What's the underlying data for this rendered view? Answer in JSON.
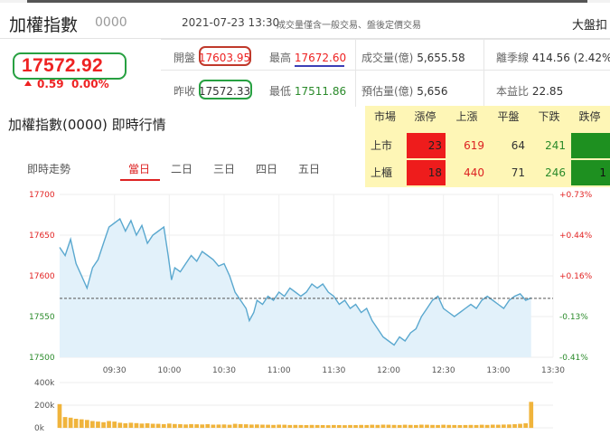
{
  "header": {
    "index_name": "加權指數",
    "index_code": "0000",
    "datetime": "2021-07-23 13:30",
    "disclaimer": "成交量僅含一般交易、盤後定價交易",
    "market_link": "大盤扣"
  },
  "quote": {
    "price": "17572.92",
    "change": "0.59",
    "change_pct": "0.00%",
    "direction": "up"
  },
  "stats": {
    "open_label": "開盤",
    "open": "17603.95",
    "high_label": "最高",
    "high": "17672.60",
    "volume_label": "成交量(億)",
    "volume": "5,655.58",
    "ma_label": "離季線",
    "ma": "414.56 (2.42%",
    "prev_label": "昨收",
    "prev": "17572.33",
    "low_label": "最低",
    "low": "17511.86",
    "est_label": "預估量(億)",
    "est": "5,656",
    "pe_label": "本益比",
    "pe": "22.85"
  },
  "section_title": "加權指數(0000) 即時行情",
  "breadth": {
    "headers": [
      "市場",
      "漲停",
      "上漲",
      "平盤",
      "下跌",
      "跌停"
    ],
    "rows": [
      {
        "market": "上市",
        "limit_up": "23",
        "up": "619",
        "flat": "64",
        "down": "241",
        "limit_down": ""
      },
      {
        "market": "上櫃",
        "limit_up": "18",
        "up": "440",
        "flat": "71",
        "down": "246",
        "limit_down": "1"
      }
    ]
  },
  "chart_tabs": {
    "label": "即時走勢",
    "tabs": [
      "當日",
      "二日",
      "三日",
      "四日",
      "五日"
    ],
    "active": 0
  },
  "colors": {
    "up": "#e22222",
    "down": "#2a8a2a",
    "line": "#5aa8cf",
    "fill": "#e2f1fa",
    "vol_bar": "#f0b43c",
    "highlight_green": "#27a041",
    "highlight_red": "#c0392b",
    "highlight_blue": "#3b3fb6"
  },
  "chart_data": {
    "type": "line",
    "x_ticks": [
      "09:30",
      "10:00",
      "10:30",
      "11:00",
      "11:30",
      "12:00",
      "12:30",
      "13:00",
      "13:30"
    ],
    "y_ticks": [
      "17700",
      "17650",
      "17600",
      "17550",
      "17500"
    ],
    "y_right_ticks": [
      "+0.73%",
      "+0.44%",
      "+0.16%",
      "-0.13%",
      "-0.41%"
    ],
    "ylim": [
      17500,
      17700
    ],
    "reference": 17572.33,
    "series": [
      {
        "values": [
          [
            9.0,
            17635
          ],
          [
            9.05,
            17625
          ],
          [
            9.1,
            17645
          ],
          [
            9.15,
            17615
          ],
          [
            9.2,
            17600
          ],
          [
            9.25,
            17585
          ],
          [
            9.3,
            17610
          ],
          [
            9.35,
            17620
          ],
          [
            9.4,
            17640
          ],
          [
            9.45,
            17660
          ],
          [
            9.5,
            17665
          ],
          [
            9.55,
            17670
          ],
          [
            9.6,
            17655
          ],
          [
            9.65,
            17668
          ],
          [
            9.7,
            17650
          ],
          [
            9.75,
            17662
          ],
          [
            9.8,
            17640
          ],
          [
            9.85,
            17650
          ],
          [
            9.9,
            17655
          ],
          [
            9.95,
            17660
          ],
          [
            9.99,
            17625
          ],
          [
            10.02,
            17595
          ],
          [
            10.05,
            17610
          ],
          [
            10.1,
            17605
          ],
          [
            10.15,
            17615
          ],
          [
            10.2,
            17625
          ],
          [
            10.25,
            17618
          ],
          [
            10.3,
            17630
          ],
          [
            10.35,
            17625
          ],
          [
            10.4,
            17620
          ],
          [
            10.45,
            17612
          ],
          [
            10.5,
            17615
          ],
          [
            10.55,
            17600
          ],
          [
            10.6,
            17580
          ],
          [
            10.65,
            17570
          ],
          [
            10.7,
            17560
          ],
          [
            10.73,
            17545
          ],
          [
            10.77,
            17555
          ],
          [
            10.8,
            17570
          ],
          [
            10.85,
            17565
          ],
          [
            10.9,
            17575
          ],
          [
            10.95,
            17570
          ],
          [
            11.0,
            17580
          ],
          [
            11.05,
            17575
          ],
          [
            11.1,
            17585
          ],
          [
            11.15,
            17580
          ],
          [
            11.2,
            17575
          ],
          [
            11.25,
            17580
          ],
          [
            11.3,
            17590
          ],
          [
            11.35,
            17585
          ],
          [
            11.4,
            17590
          ],
          [
            11.45,
            17580
          ],
          [
            11.5,
            17575
          ],
          [
            11.55,
            17565
          ],
          [
            11.6,
            17570
          ],
          [
            11.65,
            17560
          ],
          [
            11.7,
            17565
          ],
          [
            11.75,
            17555
          ],
          [
            11.8,
            17560
          ],
          [
            11.85,
            17545
          ],
          [
            11.9,
            17535
          ],
          [
            11.95,
            17525
          ],
          [
            12.0,
            17520
          ],
          [
            12.05,
            17515
          ],
          [
            12.1,
            17525
          ],
          [
            12.15,
            17520
          ],
          [
            12.2,
            17530
          ],
          [
            12.25,
            17535
          ],
          [
            12.3,
            17550
          ],
          [
            12.35,
            17560
          ],
          [
            12.4,
            17570
          ],
          [
            12.45,
            17575
          ],
          [
            12.5,
            17560
          ],
          [
            12.55,
            17555
          ],
          [
            12.6,
            17550
          ],
          [
            12.65,
            17555
          ],
          [
            12.7,
            17560
          ],
          [
            12.75,
            17565
          ],
          [
            12.8,
            17560
          ],
          [
            12.85,
            17570
          ],
          [
            12.9,
            17575
          ],
          [
            12.95,
            17570
          ],
          [
            13.0,
            17565
          ],
          [
            13.05,
            17560
          ],
          [
            13.1,
            17570
          ],
          [
            13.15,
            17575
          ],
          [
            13.2,
            17578
          ],
          [
            13.25,
            17570
          ],
          [
            13.3,
            17573
          ]
        ]
      }
    ],
    "volume": {
      "y_ticks": [
        "400k",
        "200k",
        "0k"
      ],
      "ylim": [
        0,
        400000
      ],
      "values": [
        [
          9.0,
          210000
        ],
        [
          9.05,
          95000
        ],
        [
          9.1,
          90000
        ],
        [
          9.15,
          80000
        ],
        [
          9.2,
          75000
        ],
        [
          9.25,
          70000
        ],
        [
          9.3,
          60000
        ],
        [
          9.35,
          55000
        ],
        [
          9.4,
          50000
        ],
        [
          9.45,
          60000
        ],
        [
          9.5,
          55000
        ],
        [
          9.55,
          45000
        ],
        [
          9.6,
          40000
        ],
        [
          9.65,
          45000
        ],
        [
          9.7,
          42000
        ],
        [
          9.75,
          38000
        ],
        [
          9.8,
          40000
        ],
        [
          9.85,
          36000
        ],
        [
          9.9,
          35000
        ],
        [
          9.95,
          33000
        ],
        [
          10.0,
          38000
        ],
        [
          10.05,
          34000
        ],
        [
          10.1,
          32000
        ],
        [
          10.15,
          30000
        ],
        [
          10.2,
          33000
        ],
        [
          10.25,
          31000
        ],
        [
          10.3,
          30000
        ],
        [
          10.35,
          32000
        ],
        [
          10.4,
          28000
        ],
        [
          10.45,
          29000
        ],
        [
          10.5,
          30000
        ],
        [
          10.55,
          27000
        ],
        [
          10.6,
          35000
        ],
        [
          10.65,
          33000
        ],
        [
          10.7,
          31000
        ],
        [
          10.75,
          29000
        ],
        [
          10.8,
          30000
        ],
        [
          10.85,
          28000
        ],
        [
          10.9,
          27000
        ],
        [
          10.95,
          26000
        ],
        [
          11.0,
          28000
        ],
        [
          11.05,
          27000
        ],
        [
          11.1,
          25000
        ],
        [
          11.15,
          26000
        ],
        [
          11.2,
          25000
        ],
        [
          11.25,
          24000
        ],
        [
          11.3,
          26000
        ],
        [
          11.35,
          25000
        ],
        [
          11.4,
          24000
        ],
        [
          11.45,
          23000
        ],
        [
          11.5,
          25000
        ],
        [
          11.55,
          24000
        ],
        [
          11.6,
          23000
        ],
        [
          11.65,
          25000
        ],
        [
          11.7,
          24000
        ],
        [
          11.75,
          26000
        ],
        [
          11.8,
          25000
        ],
        [
          11.85,
          27000
        ],
        [
          11.9,
          26000
        ],
        [
          11.95,
          28000
        ],
        [
          12.0,
          27000
        ],
        [
          12.05,
          26000
        ],
        [
          12.1,
          25000
        ],
        [
          12.15,
          27000
        ],
        [
          12.2,
          26000
        ],
        [
          12.25,
          25000
        ],
        [
          12.3,
          28000
        ],
        [
          12.35,
          27000
        ],
        [
          12.4,
          26000
        ],
        [
          12.45,
          25000
        ],
        [
          12.5,
          27000
        ],
        [
          12.55,
          26000
        ],
        [
          12.6,
          25000
        ],
        [
          12.65,
          24000
        ],
        [
          12.7,
          25000
        ],
        [
          12.75,
          26000
        ],
        [
          12.8,
          25000
        ],
        [
          12.85,
          27000
        ],
        [
          12.9,
          26000
        ],
        [
          12.95,
          28000
        ],
        [
          13.0,
          27000
        ],
        [
          13.05,
          29000
        ],
        [
          13.1,
          30000
        ],
        [
          13.15,
          32000
        ],
        [
          13.2,
          35000
        ],
        [
          13.25,
          40000
        ],
        [
          13.3,
          230000
        ]
      ]
    }
  }
}
